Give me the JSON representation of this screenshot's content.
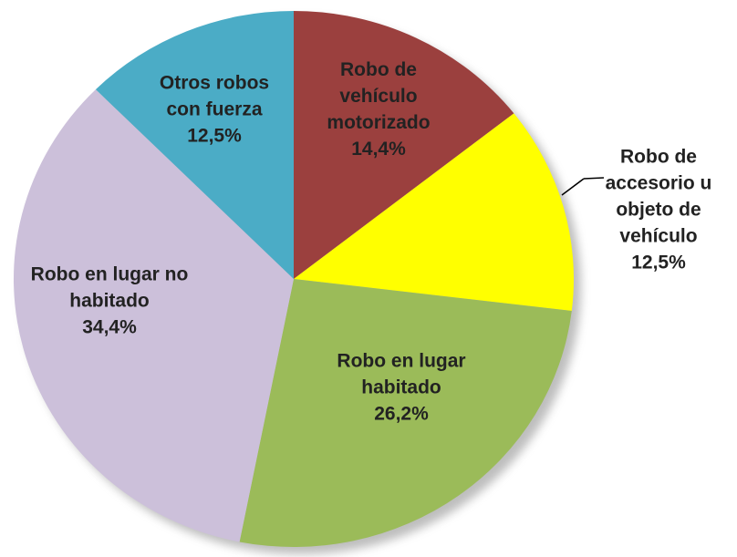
{
  "chart_data": {
    "type": "pie",
    "categories": [
      "Robo de vehículo motorizado",
      "Robo de accesorio u objeto de vehículo",
      "Robo en lugar habitado",
      "Robo en lugar no habitado",
      "Otros robos con fuerza"
    ],
    "values": [
      14.4,
      12.5,
      26.2,
      34.4,
      12.5
    ],
    "value_labels": [
      "14,4%",
      "12,5%",
      "26,2%",
      "34,4%",
      "12,5%"
    ],
    "colors": [
      "#9b403e",
      "#ffff00",
      "#9bbb59",
      "#ccc0da",
      "#4bacc6"
    ]
  }
}
